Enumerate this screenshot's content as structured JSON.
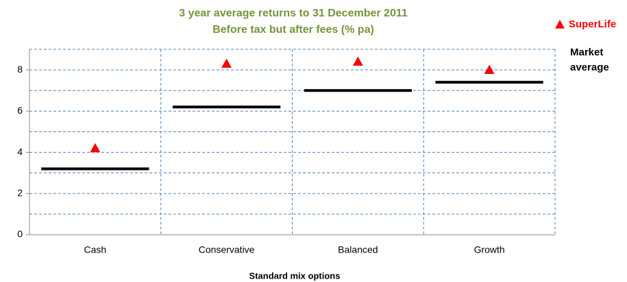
{
  "chart_data": {
    "type": "marker",
    "title": "3 year average returns to 31 December 2011",
    "subtitle": "Before tax but after fees (% pa)",
    "x_label": "Standard mix options",
    "categories": [
      "Cash",
      "Conservative",
      "Balanced",
      "Growth"
    ],
    "series": [
      {
        "name": "Market average",
        "color": "#000000",
        "marker": "line",
        "values": [
          3.2,
          6.2,
          7.0,
          7.4
        ]
      },
      {
        "name": "SuperLife",
        "color": "#ff0000",
        "marker": "triangle",
        "values": [
          4.2,
          8.3,
          8.4,
          8.0
        ]
      }
    ],
    "ylim": [
      0,
      9
    ],
    "yticks": [
      0,
      2,
      4,
      6,
      8
    ],
    "minor_yticks": [
      1,
      3,
      5,
      7,
      9
    ],
    "grid": true
  }
}
